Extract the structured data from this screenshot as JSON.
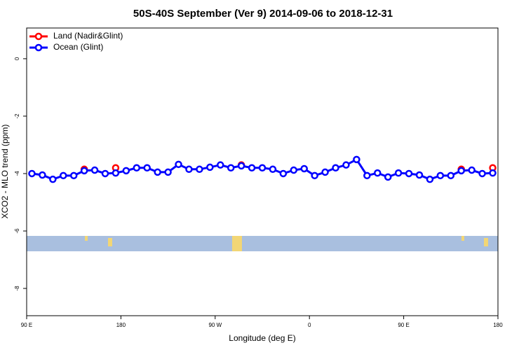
{
  "chart_data": {
    "type": "line",
    "title": "50S-40S September (Ver 9)   2014-09-06 to 2018-12-31",
    "x_label": "Longitude (deg E)",
    "y_label": "XCO2 - MLO trend (ppm)",
    "x": [
      95,
      105,
      115,
      125,
      135,
      145,
      155,
      165,
      175,
      185,
      195,
      205,
      215,
      225,
      235,
      245,
      255,
      265,
      275,
      285,
      295,
      305,
      315,
      325,
      335,
      345,
      355,
      365,
      375,
      385,
      395,
      405,
      415,
      425,
      435,
      445,
      455,
      465,
      475,
      485,
      495,
      505,
      515,
      525,
      535
    ],
    "series": [
      {
        "name": "Land (Nadir&Glint)",
        "color": "#ff0000",
        "values": [
          null,
          null,
          null,
          null,
          null,
          -3.85,
          null,
          null,
          -3.8,
          null,
          null,
          null,
          null,
          null,
          null,
          null,
          null,
          null,
          null,
          null,
          -3.7,
          null,
          null,
          null,
          null,
          null,
          null,
          null,
          null,
          null,
          null,
          null,
          null,
          null,
          null,
          null,
          null,
          null,
          null,
          null,
          null,
          -3.85,
          null,
          null,
          -3.8
        ]
      },
      {
        "name": "Ocean (Glint)",
        "color": "#0000ff",
        "values": [
          -4.0,
          -4.05,
          -4.2,
          -4.07,
          -4.07,
          -3.9,
          -3.88,
          -4.0,
          -3.98,
          -3.9,
          -3.8,
          -3.8,
          -3.95,
          -3.95,
          -3.68,
          -3.85,
          -3.85,
          -3.78,
          -3.7,
          -3.8,
          -3.73,
          -3.8,
          -3.8,
          -3.85,
          -4.0,
          -3.88,
          -3.83,
          -4.07,
          -3.95,
          -3.8,
          -3.7,
          -3.51,
          -4.07,
          -3.98,
          -4.12,
          -3.98,
          -4.0,
          -4.05,
          -4.2,
          -4.07,
          -4.07,
          -3.9,
          -3.88,
          -4.0,
          -3.98
        ]
      }
    ],
    "xlim": [
      90,
      540
    ],
    "xticks": [
      {
        "value": 90,
        "label": "90 E"
      },
      180,
      {
        "value": 270,
        "label": "90 W"
      },
      {
        "value": 360,
        "label": "0"
      },
      {
        "value": 450,
        "label": "90 E"
      },
      {
        "value": 540,
        "label": "180"
      }
    ],
    "ylim": [
      -8.95,
      1.07
    ],
    "yticks": [
      0,
      -2,
      -4,
      -6,
      -8
    ],
    "legend": "top-left"
  }
}
